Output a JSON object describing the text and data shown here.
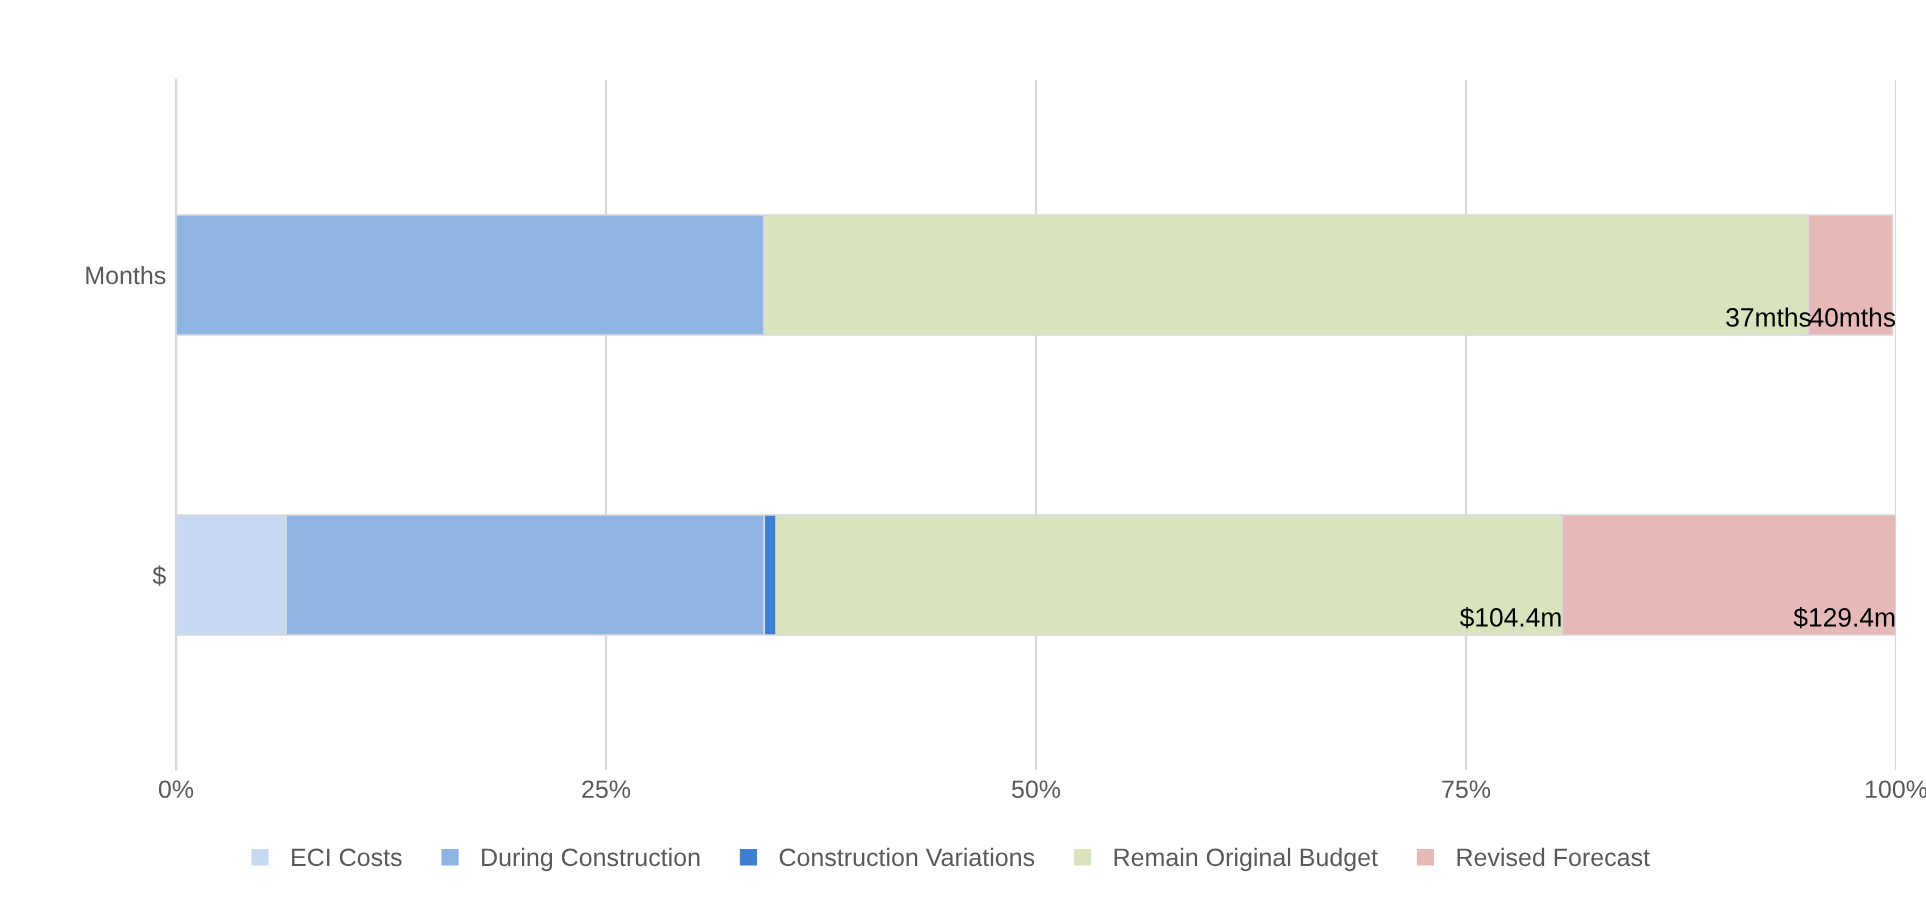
{
  "chart_data": {
    "type": "bar",
    "orientation": "horizontal",
    "stacked": true,
    "categories": [
      "Months",
      "$"
    ],
    "series": [
      {
        "name": "ECI Costs",
        "color": "#c6d9f0",
        "values": [
          0,
          6.4
        ]
      },
      {
        "name": "During Construction",
        "color": "#8eb4e3",
        "values": [
          34.2,
          27.8
        ]
      },
      {
        "name": "Construction Variations",
        "color": "#3f7fcf",
        "values": [
          0,
          0.7
        ]
      },
      {
        "name": "Remain Original Budget",
        "color": "#d7e4bd",
        "values": [
          60.7,
          45.7
        ]
      },
      {
        "name": "Revised Forecast",
        "color": "#e6b9b8",
        "values": [
          4.9,
          19.4
        ]
      }
    ],
    "xlim": [
      0,
      100
    ],
    "xticks": [
      {
        "value": 0,
        "label": "0%"
      },
      {
        "value": 25,
        "label": "25%"
      },
      {
        "value": 50,
        "label": "50%"
      },
      {
        "value": 75,
        "label": "75%"
      },
      {
        "value": 100,
        "label": "100%"
      }
    ],
    "grid": "x",
    "legend": "bottom",
    "annotations": [
      {
        "text": "37mths",
        "x": 95.1,
        "y": "Months"
      },
      {
        "text": "40mths",
        "x": 100,
        "y": "Months"
      },
      {
        "text": "$104.4m",
        "x": 80.6,
        "y": "$"
      },
      {
        "text": "$129.4m",
        "x": 100,
        "y": "$"
      }
    ]
  }
}
